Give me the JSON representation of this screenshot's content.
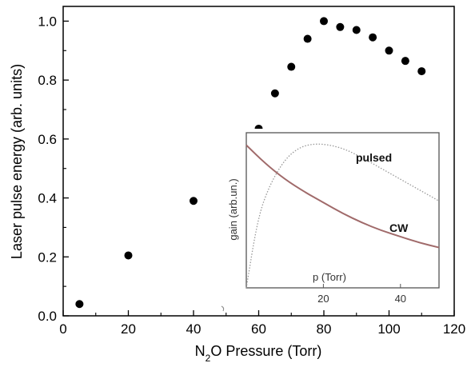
{
  "chart_data": [
    {
      "type": "scatter",
      "xlabel_parts": [
        "N",
        "2",
        "O Pressure (Torr)"
      ],
      "ylabel": "Laser pulse energy (arb. units)",
      "xlim": [
        0,
        120
      ],
      "ylim": [
        0,
        1.05
      ],
      "xticks": [
        "0",
        "20",
        "40",
        "60",
        "80",
        "100",
        "120"
      ],
      "yticks": [
        "0.0",
        "0.2",
        "0.4",
        "0.6",
        "0.8",
        "1.0"
      ],
      "series": [
        {
          "marker_color": "#000000",
          "x": [
            5,
            20,
            40,
            60,
            65,
            70,
            75,
            80,
            85,
            90,
            95,
            100,
            105,
            110
          ],
          "y": [
            0.04,
            0.205,
            0.39,
            0.635,
            0.755,
            0.845,
            0.94,
            1.0,
            0.98,
            0.97,
            0.945,
            0.9,
            0.865,
            0.83
          ]
        }
      ]
    },
    {
      "type": "line",
      "xlabel": "p (Torr)",
      "ylabel": "gain (arb.un.)",
      "xlim": [
        0,
        50
      ],
      "ylim": [
        0,
        1
      ],
      "xticks": [
        "20",
        "40"
      ],
      "series": [
        {
          "name": "pulsed",
          "color": "#999999",
          "style": "dotted",
          "x": [
            0,
            3,
            6,
            10,
            14,
            18,
            22,
            26,
            30,
            35,
            40,
            45,
            50
          ],
          "y": [
            0.0,
            0.45,
            0.66,
            0.83,
            0.91,
            0.93,
            0.92,
            0.89,
            0.84,
            0.77,
            0.7,
            0.63,
            0.56
          ]
        },
        {
          "name": "CW",
          "color": "#a06a6a",
          "style": "solid",
          "x": [
            0,
            5,
            10,
            15,
            20,
            25,
            30,
            35,
            40,
            45,
            50
          ],
          "y": [
            0.92,
            0.8,
            0.7,
            0.62,
            0.55,
            0.48,
            0.42,
            0.37,
            0.33,
            0.29,
            0.26
          ]
        }
      ]
    }
  ]
}
